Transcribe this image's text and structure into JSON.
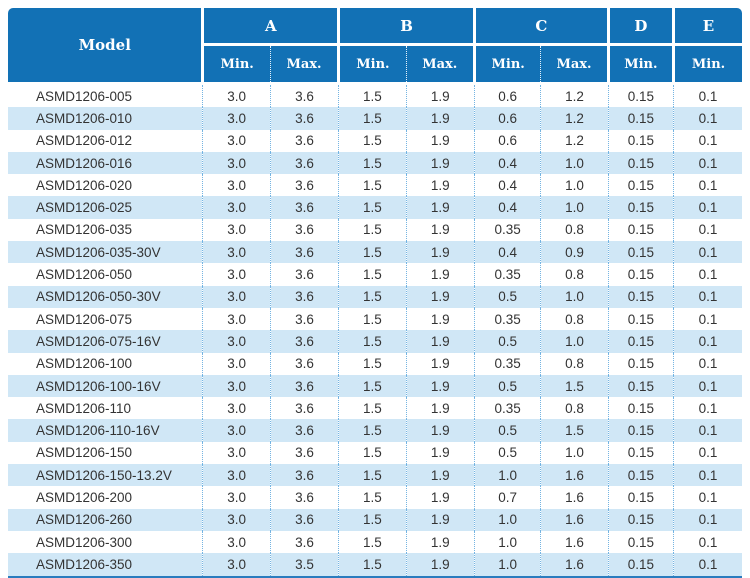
{
  "table": {
    "accent_color": "#1271b5",
    "row_alt_color": "#d0e7f6",
    "divider_dot_color": "#74b4e2",
    "bottom_border_color": "#2a7cbe",
    "header": {
      "model_label": "Model",
      "groups": [
        {
          "label": "A",
          "subs": [
            "Min.",
            "Max."
          ]
        },
        {
          "label": "B",
          "subs": [
            "Min.",
            "Max."
          ]
        },
        {
          "label": "C",
          "subs": [
            "Min.",
            "Max."
          ]
        },
        {
          "label": "D",
          "subs": [
            "Min."
          ]
        },
        {
          "label": "E",
          "subs": [
            "Min."
          ]
        }
      ]
    },
    "rows": [
      {
        "model": "ASMD1206-005",
        "values": [
          "3.0",
          "3.6",
          "1.5",
          "1.9",
          "0.6",
          "1.2",
          "0.15",
          "0.1"
        ]
      },
      {
        "model": "ASMD1206-010",
        "values": [
          "3.0",
          "3.6",
          "1.5",
          "1.9",
          "0.6",
          "1.2",
          "0.15",
          "0.1"
        ]
      },
      {
        "model": "ASMD1206-012",
        "values": [
          "3.0",
          "3.6",
          "1.5",
          "1.9",
          "0.6",
          "1.2",
          "0.15",
          "0.1"
        ]
      },
      {
        "model": "ASMD1206-016",
        "values": [
          "3.0",
          "3.6",
          "1.5",
          "1.9",
          "0.4",
          "1.0",
          "0.15",
          "0.1"
        ]
      },
      {
        "model": "ASMD1206-020",
        "values": [
          "3.0",
          "3.6",
          "1.5",
          "1.9",
          "0.4",
          "1.0",
          "0.15",
          "0.1"
        ]
      },
      {
        "model": "ASMD1206-025",
        "values": [
          "3.0",
          "3.6",
          "1.5",
          "1.9",
          "0.4",
          "1.0",
          "0.15",
          "0.1"
        ]
      },
      {
        "model": "ASMD1206-035",
        "values": [
          "3.0",
          "3.6",
          "1.5",
          "1.9",
          "0.35",
          "0.8",
          "0.15",
          "0.1"
        ]
      },
      {
        "model": "ASMD1206-035-30V",
        "values": [
          "3.0",
          "3.6",
          "1.5",
          "1.9",
          "0.4",
          "0.9",
          "0.15",
          "0.1"
        ]
      },
      {
        "model": "ASMD1206-050",
        "values": [
          "3.0",
          "3.6",
          "1.5",
          "1.9",
          "0.35",
          "0.8",
          "0.15",
          "0.1"
        ]
      },
      {
        "model": "ASMD1206-050-30V",
        "values": [
          "3.0",
          "3.6",
          "1.5",
          "1.9",
          "0.5",
          "1.0",
          "0.15",
          "0.1"
        ]
      },
      {
        "model": "ASMD1206-075",
        "values": [
          "3.0",
          "3.6",
          "1.5",
          "1.9",
          "0.35",
          "0.8",
          "0.15",
          "0.1"
        ]
      },
      {
        "model": "ASMD1206-075-16V",
        "values": [
          "3.0",
          "3.6",
          "1.5",
          "1.9",
          "0.5",
          "1.0",
          "0.15",
          "0.1"
        ]
      },
      {
        "model": "ASMD1206-100",
        "values": [
          "3.0",
          "3.6",
          "1.5",
          "1.9",
          "0.35",
          "0.8",
          "0.15",
          "0.1"
        ]
      },
      {
        "model": "ASMD1206-100-16V",
        "values": [
          "3.0",
          "3.6",
          "1.5",
          "1.9",
          "0.5",
          "1.5",
          "0.15",
          "0.1"
        ]
      },
      {
        "model": "ASMD1206-110",
        "values": [
          "3.0",
          "3.6",
          "1.5",
          "1.9",
          "0.35",
          "0.8",
          "0.15",
          "0.1"
        ]
      },
      {
        "model": "ASMD1206-110-16V",
        "values": [
          "3.0",
          "3.6",
          "1.5",
          "1.9",
          "0.5",
          "1.5",
          "0.15",
          "0.1"
        ]
      },
      {
        "model": "ASMD1206-150",
        "values": [
          "3.0",
          "3.6",
          "1.5",
          "1.9",
          "0.5",
          "1.0",
          "0.15",
          "0.1"
        ]
      },
      {
        "model": "ASMD1206-150-13.2V",
        "values": [
          "3.0",
          "3.6",
          "1.5",
          "1.9",
          "1.0",
          "1.6",
          "0.15",
          "0.1"
        ]
      },
      {
        "model": "ASMD1206-200",
        "values": [
          "3.0",
          "3.6",
          "1.5",
          "1.9",
          "0.7",
          "1.6",
          "0.15",
          "0.1"
        ]
      },
      {
        "model": "ASMD1206-260",
        "values": [
          "3.0",
          "3.6",
          "1.5",
          "1.9",
          "1.0",
          "1.6",
          "0.15",
          "0.1"
        ]
      },
      {
        "model": "ASMD1206-300",
        "values": [
          "3.0",
          "3.6",
          "1.5",
          "1.9",
          "1.0",
          "1.6",
          "0.15",
          "0.1"
        ]
      },
      {
        "model": "ASMD1206-350",
        "values": [
          "3.0",
          "3.5",
          "1.5",
          "1.9",
          "1.0",
          "1.6",
          "0.15",
          "0.1"
        ]
      }
    ]
  }
}
